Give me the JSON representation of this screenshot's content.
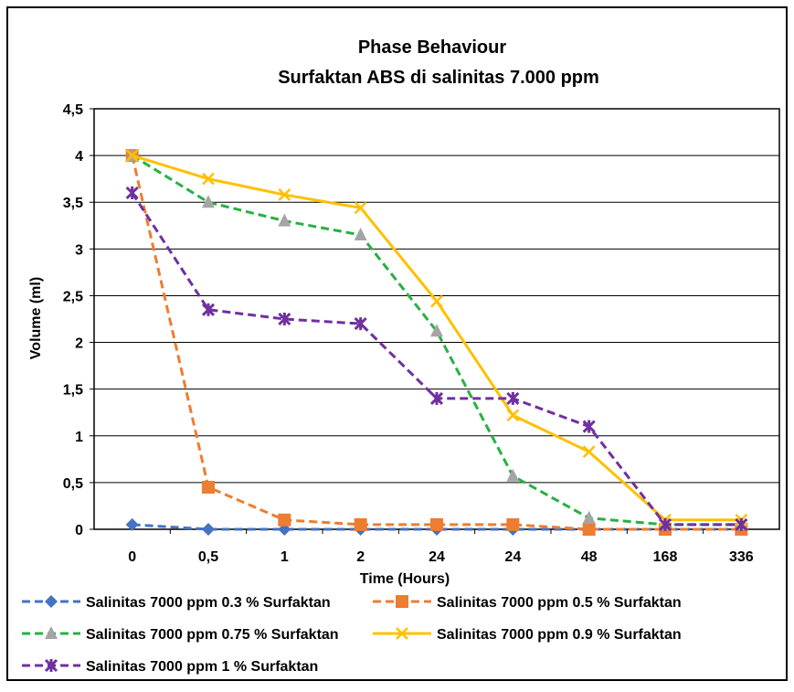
{
  "chart_data": {
    "type": "line",
    "title": "Phase Behaviour",
    "subtitle": "Surfaktan ABS di salinitas 7.000 ppm",
    "xlabel": "Time (Hours)",
    "ylabel": "Volume (ml)",
    "categories": [
      "0",
      "0,5",
      "1",
      "2",
      "24",
      "24",
      "48",
      "168",
      "336"
    ],
    "ylim": [
      0,
      4.5
    ],
    "yticks": [
      "0",
      "0,5",
      "1",
      "1,5",
      "2",
      "2,5",
      "3",
      "3,5",
      "4",
      "4,5"
    ],
    "grid": "horizontal",
    "legend_position": "bottom",
    "series": [
      {
        "name": "Salinitas 7000 ppm 0.3 % Surfaktan",
        "color": "#4472C4",
        "marker": "diamond",
        "values": [
          0.05,
          0,
          0,
          0,
          0,
          0,
          0,
          0,
          0
        ]
      },
      {
        "name": "Salinitas 7000 ppm 0.5 % Surfaktan",
        "color": "#ED7D31",
        "marker": "square",
        "values": [
          4,
          0.45,
          0.1,
          0.05,
          0.05,
          0.05,
          0,
          0,
          0
        ]
      },
      {
        "name": "Salinitas 7000 ppm 0.75 % Surfaktan",
        "color": "#28B041",
        "marker": "triangle",
        "marker_color": "#A5A5A5",
        "values": [
          4,
          3.5,
          3.3,
          3.15,
          2.12,
          0.57,
          0.12,
          0.05,
          0.05
        ]
      },
      {
        "name": "Salinitas 7000 ppm 0.9 % Surfaktan",
        "color": "#FFC000",
        "marker": "x",
        "values": [
          4,
          3.75,
          3.58,
          3.44,
          2.44,
          1.22,
          0.83,
          0.1,
          0.1
        ]
      },
      {
        "name": "Salinitas 7000 ppm 1 % Surfaktan",
        "color": "#7030A0",
        "marker": "star",
        "values": [
          3.6,
          2.35,
          2.25,
          2.2,
          1.4,
          1.4,
          1.1,
          0.05,
          0.05
        ]
      }
    ]
  }
}
